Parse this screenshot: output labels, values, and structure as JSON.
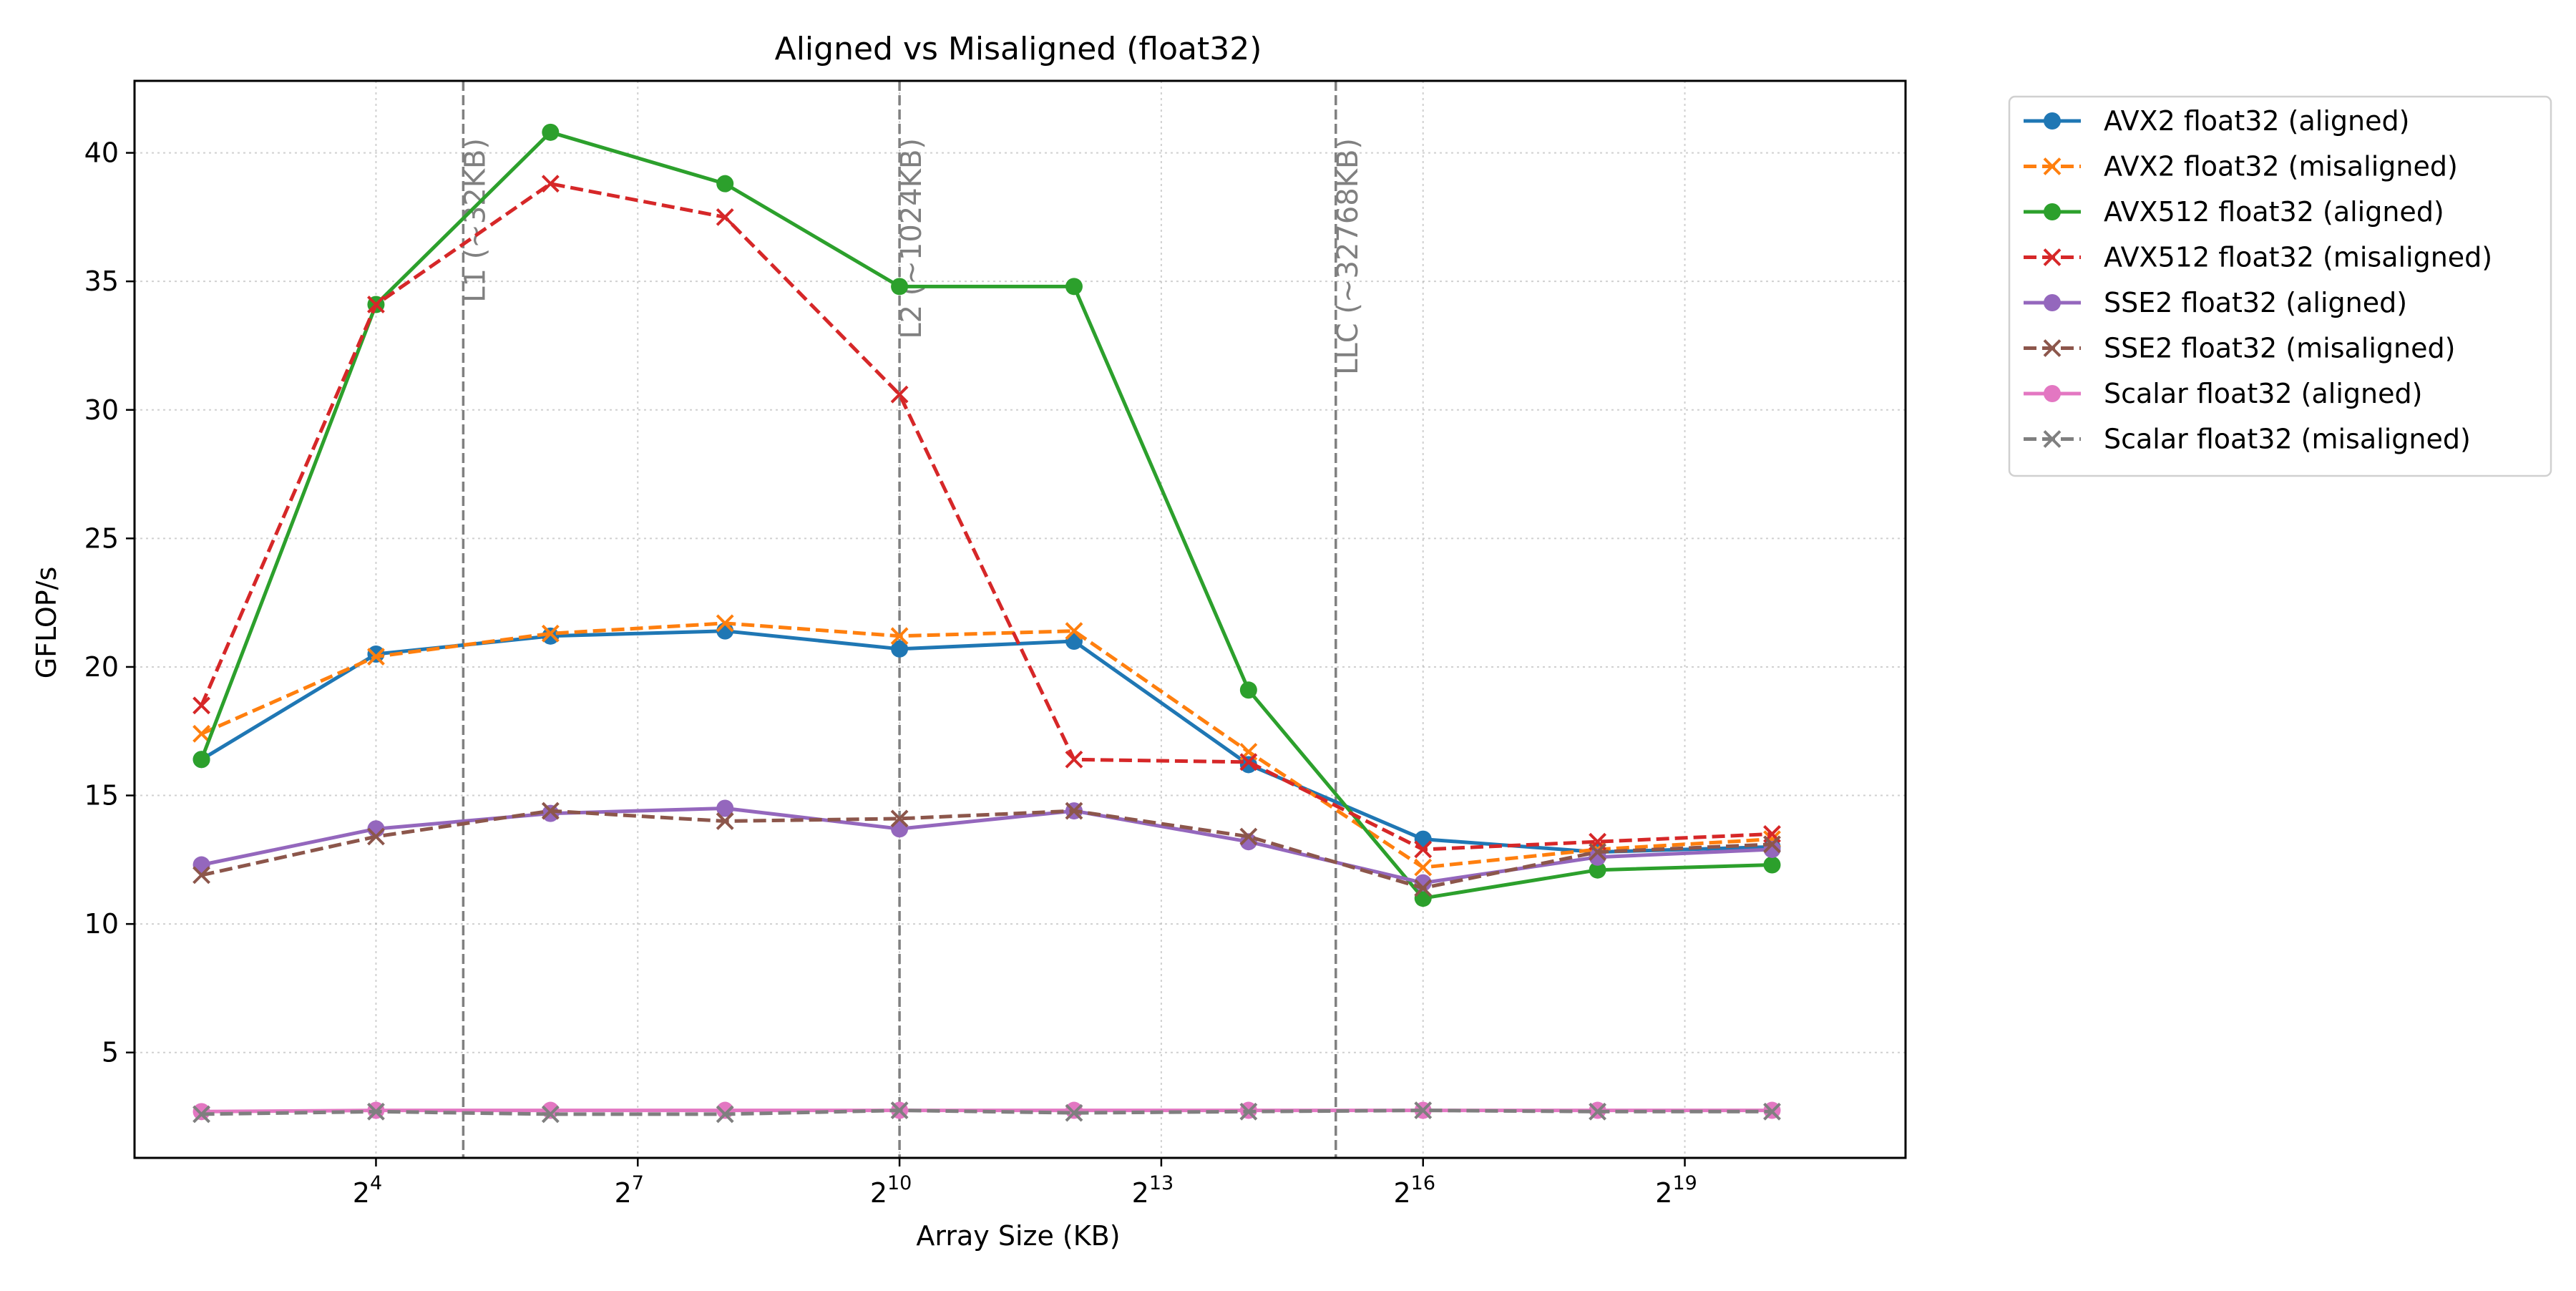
{
  "chart_data": {
    "type": "line",
    "title": "Aligned vs Misaligned (float32)",
    "xlabel": "Array Size (KB)",
    "ylabel": "GFLOP/s",
    "x_scale": "log2",
    "x": [
      4,
      16,
      64,
      256,
      1024,
      4096,
      16384,
      65536,
      262144,
      1048576
    ],
    "xlim": [
      2.35,
      3027000
    ],
    "ylim": [
      0.9,
      42.8
    ],
    "x_ticks": [
      {
        "value": 16,
        "base": "2",
        "exp": "4"
      },
      {
        "value": 128,
        "base": "2",
        "exp": "7"
      },
      {
        "value": 1024,
        "base": "2",
        "exp": "10"
      },
      {
        "value": 8192,
        "base": "2",
        "exp": "13"
      },
      {
        "value": 65536,
        "base": "2",
        "exp": "16"
      },
      {
        "value": 524288,
        "base": "2",
        "exp": "19"
      }
    ],
    "y_ticks": [
      5,
      10,
      15,
      20,
      25,
      30,
      35,
      40
    ],
    "y_tick_labels": [
      "5",
      "10",
      "15",
      "20",
      "25",
      "30",
      "35",
      "40"
    ],
    "grid": true,
    "legend_position": "outside-right-top",
    "reference_lines": [
      {
        "x": 32,
        "label": "L1 (~32KB)"
      },
      {
        "x": 1024,
        "label": "L2 (~1024KB)"
      },
      {
        "x": 32768,
        "label": "LLC (~32768KB)"
      }
    ],
    "series": [
      {
        "name": "AVX2 float32 (aligned)",
        "color": "#1f77b4",
        "dashed": false,
        "marker": "circle",
        "values": [
          16.4,
          20.5,
          21.2,
          21.4,
          20.7,
          21.0,
          16.2,
          13.3,
          12.8,
          13.0
        ]
      },
      {
        "name": "AVX2 float32 (misaligned)",
        "color": "#ff7f0e",
        "dashed": true,
        "marker": "x",
        "values": [
          17.4,
          20.4,
          21.3,
          21.7,
          21.2,
          21.4,
          16.7,
          12.2,
          12.9,
          13.3
        ]
      },
      {
        "name": "AVX512 float32 (aligned)",
        "color": "#2ca02c",
        "dashed": false,
        "marker": "circle",
        "values": [
          16.4,
          34.1,
          40.8,
          38.8,
          34.8,
          34.8,
          19.1,
          11.0,
          12.1,
          12.3
        ]
      },
      {
        "name": "AVX512 float32 (misaligned)",
        "color": "#d62728",
        "dashed": true,
        "marker": "x",
        "values": [
          18.5,
          34.1,
          38.8,
          37.5,
          30.6,
          16.4,
          16.3,
          12.9,
          13.2,
          13.5
        ]
      },
      {
        "name": "SSE2 float32 (aligned)",
        "color": "#9467bd",
        "dashed": false,
        "marker": "circle",
        "values": [
          12.3,
          13.7,
          14.3,
          14.5,
          13.7,
          14.4,
          13.2,
          11.6,
          12.6,
          12.9
        ]
      },
      {
        "name": "SSE2 float32 (misaligned)",
        "color": "#8c564b",
        "dashed": true,
        "marker": "x",
        "values": [
          11.9,
          13.4,
          14.4,
          14.0,
          14.1,
          14.4,
          13.4,
          11.4,
          12.8,
          13.1
        ]
      },
      {
        "name": "Scalar float32 (aligned)",
        "color": "#e377c2",
        "dashed": false,
        "marker": "circle",
        "values": [
          2.7,
          2.75,
          2.75,
          2.75,
          2.75,
          2.75,
          2.75,
          2.75,
          2.75,
          2.75
        ]
      },
      {
        "name": "Scalar float32 (misaligned)",
        "color": "#7f7f7f",
        "dashed": true,
        "marker": "x",
        "values": [
          2.6,
          2.7,
          2.6,
          2.6,
          2.75,
          2.65,
          2.7,
          2.75,
          2.7,
          2.7
        ]
      }
    ]
  }
}
